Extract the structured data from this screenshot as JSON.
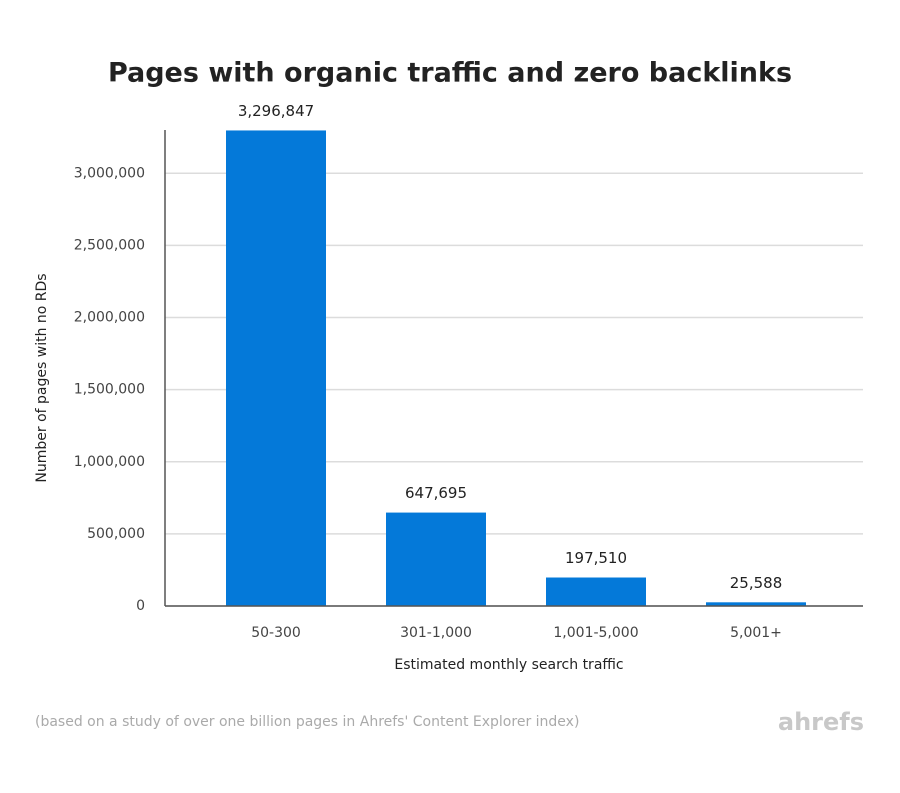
{
  "chart_data": {
    "type": "bar",
    "title": "Pages with organic traffic and zero backlinks",
    "x_label": "Estimated monthly search traffic",
    "y_label": "Number of pages with no RDs",
    "categories": [
      "50-300",
      "301-1,000",
      "1,001-5,000",
      "5,001+"
    ],
    "values": [
      3296847,
      647695,
      197510,
      25588
    ],
    "value_labels": [
      "3,296,847",
      "647,695",
      "197,510",
      "25,588"
    ],
    "color": "#0479d9",
    "ylim": [
      0,
      3300000
    ],
    "yticks": [
      0,
      {
        "value": 500000,
        "label": "500,000"
      },
      {
        "value": 1000000,
        "label": "1,000,000"
      },
      {
        "value": 1500000,
        "label": "1,500,000"
      },
      {
        "value": 2000000,
        "label": "2,000,000"
      },
      {
        "value": 2500000,
        "label": "2,500,000"
      },
      {
        "value": 3000000,
        "label": "3,000,000"
      }
    ],
    "grid": true,
    "note": "(based on a study of over one billion pages in Ahrefs' Content Explorer index)",
    "brand": "ahrefs"
  }
}
